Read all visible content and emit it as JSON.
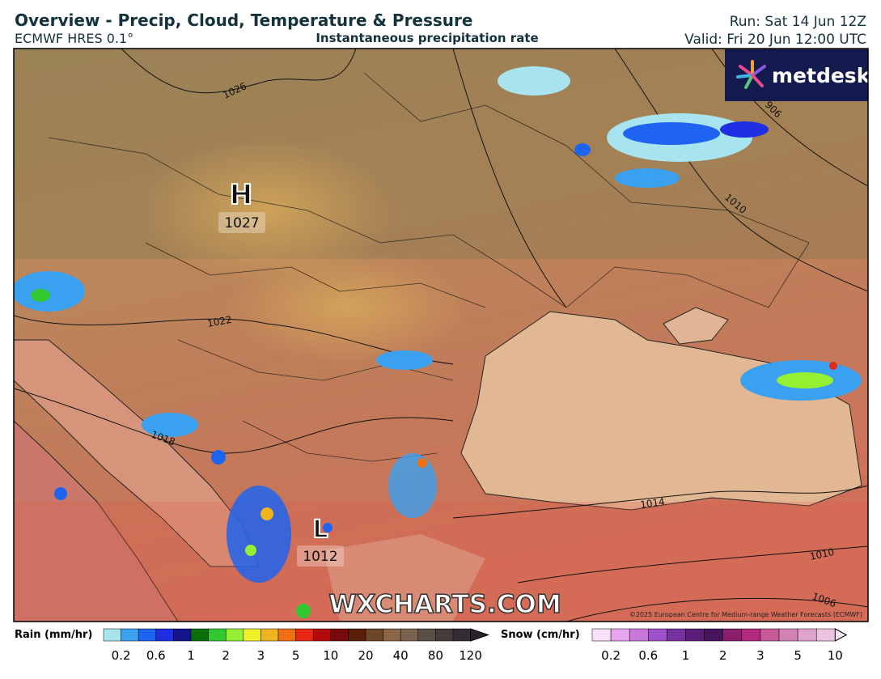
{
  "header": {
    "title": "Overview - Precip, Cloud, Temperature & Pressure",
    "model": "ECMWF HRES 0.1°",
    "layer": "Instantaneous precipitation rate",
    "run": "Run: Sat 14 Jun 12Z",
    "valid": "Valid: Fri 20 Jun 12:00 UTC"
  },
  "map": {
    "high": {
      "symbol": "H",
      "pressure": "1027"
    },
    "low": {
      "symbol": "L",
      "pressure": "1012"
    },
    "isobar_labels": [
      "1026",
      "1022",
      "1018",
      "1014",
      "1010",
      "1010",
      "1006",
      "906"
    ],
    "watermark": "WXCHARTS.COM",
    "copyright": "©2025 European Centre for Medium-range Weather Forecasts (ECMWF)",
    "logo": "metdesk"
  },
  "legend": {
    "rain": {
      "label": "Rain (mm/hr)",
      "ticks": [
        "0.2",
        "0.6",
        "1",
        "2",
        "3",
        "5",
        "10",
        "20",
        "40",
        "80",
        "120"
      ],
      "colors": [
        "#a8e4f0",
        "#3aa0f0",
        "#1e64f0",
        "#1e2ee0",
        "#14148c",
        "#0a6e0a",
        "#32c832",
        "#96f032",
        "#f0f028",
        "#f0b41e",
        "#f06e14",
        "#e62814",
        "#b40a0a",
        "#780a0a",
        "#5a1e0a",
        "#6e4628",
        "#8c6446",
        "#78644e",
        "#5a5046",
        "#463c3c",
        "#322d32",
        "#28232a"
      ]
    },
    "snow": {
      "label": "Snow (cm/hr)",
      "ticks": [
        "0.2",
        "0.6",
        "1",
        "2",
        "3",
        "5",
        "10"
      ],
      "colors": [
        "#f8e0f8",
        "#e6a6ee",
        "#c878dc",
        "#a050c8",
        "#7832a0",
        "#5a1e78",
        "#46145a",
        "#8c1e6e",
        "#b4287e",
        "#c85a9a",
        "#d282b4",
        "#e0a4cc",
        "#ecc4e0",
        "#f8e6f4"
      ]
    }
  }
}
